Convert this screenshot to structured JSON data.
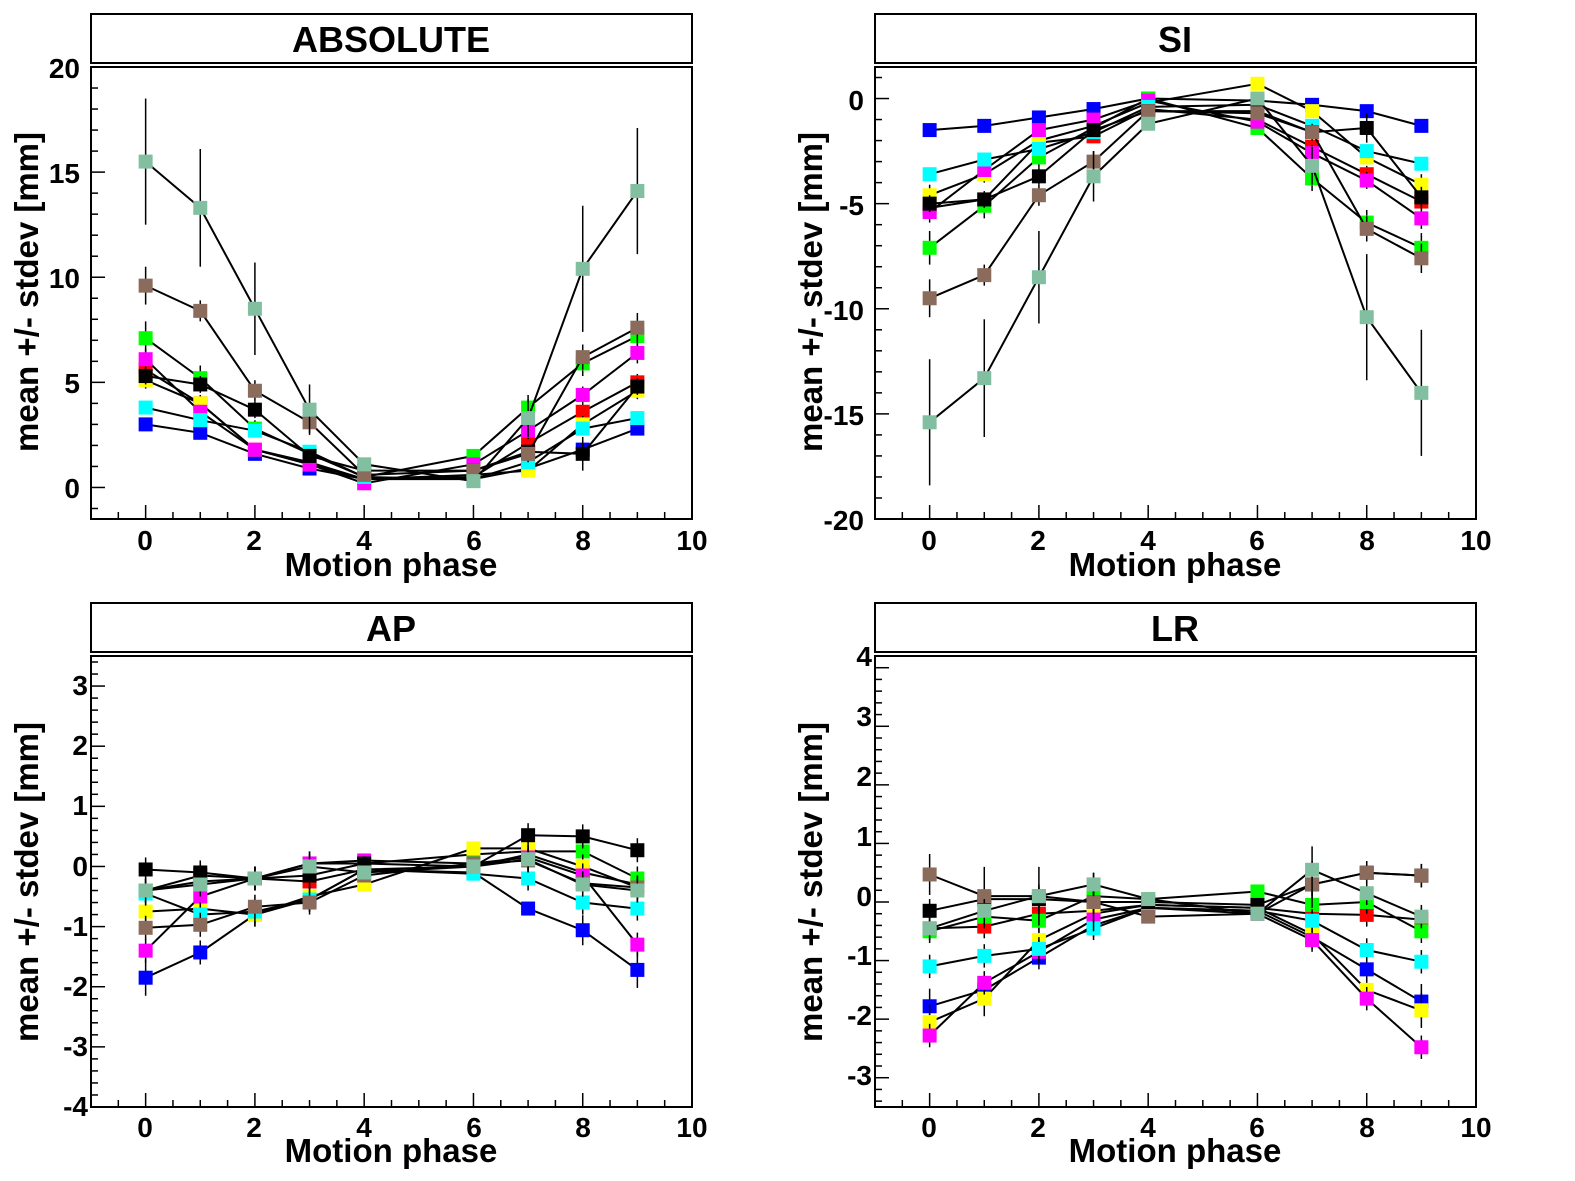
{
  "colors": {
    "blue": "#0000ff",
    "red": "#ff0000",
    "green": "#00ff00",
    "yellow": "#ffff00",
    "magenta": "#ff00ff",
    "cyan": "#00ffff",
    "black": "#000000",
    "brown": "#8b6b5b",
    "sage": "#82bfa0"
  },
  "chart_data": [
    {
      "type": "scatter",
      "title": "ABSOLUTE",
      "xlabel": "Motion phase",
      "ylabel": "mean +/- stdev [mm]",
      "xlim": [
        -1,
        10
      ],
      "ylim": [
        -1.5,
        20
      ],
      "xticks": [
        "0",
        "2",
        "4",
        "6",
        "8",
        "10"
      ],
      "yticks": [
        "0",
        "5",
        "10",
        "15",
        "20"
      ],
      "x": [
        0,
        1,
        2,
        3,
        4,
        6,
        7,
        8,
        9
      ],
      "series": [
        {
          "color": "blue",
          "values": [
            3.0,
            2.6,
            1.6,
            0.9,
            0.4,
            0.4,
            0.9,
            1.8,
            2.8
          ],
          "err": [
            0.3,
            0.3,
            0.3,
            0.2,
            0.2,
            0.2,
            0.2,
            0.4,
            0.3
          ]
        },
        {
          "color": "red",
          "values": [
            5.6,
            4.0,
            1.8,
            1.2,
            0.4,
            0.5,
            2.1,
            3.6,
            5.0
          ],
          "err": [
            0.4,
            0.4,
            0.3,
            0.2,
            0.2,
            0.2,
            0.4,
            0.4,
            0.4
          ]
        },
        {
          "color": "green",
          "values": [
            7.1,
            5.2,
            2.8,
            1.6,
            0.5,
            1.5,
            3.8,
            5.9,
            7.2
          ],
          "err": [
            0.8,
            0.6,
            0.4,
            0.3,
            0.2,
            0.2,
            0.6,
            0.6,
            0.5
          ]
        },
        {
          "color": "yellow",
          "values": [
            5.1,
            4.0,
            1.8,
            1.1,
            0.4,
            0.6,
            0.8,
            3.0,
            4.6
          ],
          "err": [
            0.4,
            0.3,
            0.3,
            0.2,
            0.2,
            0.2,
            0.2,
            0.4,
            0.4
          ]
        },
        {
          "color": "magenta",
          "values": [
            6.1,
            3.6,
            1.8,
            1.1,
            0.2,
            1.1,
            2.7,
            4.4,
            6.4
          ],
          "err": [
            0.5,
            0.3,
            0.3,
            0.2,
            0.2,
            0.2,
            0.4,
            0.4,
            0.5
          ]
        },
        {
          "color": "cyan",
          "values": [
            3.8,
            3.2,
            2.7,
            1.7,
            0.5,
            0.4,
            1.2,
            2.8,
            3.3
          ],
          "err": [
            0.3,
            0.3,
            0.3,
            0.3,
            0.2,
            0.2,
            0.3,
            0.3,
            0.3
          ]
        },
        {
          "color": "black",
          "values": [
            5.3,
            4.9,
            3.7,
            1.5,
            0.8,
            0.8,
            1.7,
            1.6,
            4.8
          ],
          "err": [
            0.4,
            0.4,
            0.4,
            0.3,
            0.2,
            0.2,
            0.3,
            0.8,
            0.4
          ]
        },
        {
          "color": "brown",
          "values": [
            9.6,
            8.4,
            4.6,
            3.1,
            0.6,
            0.8,
            1.6,
            6.2,
            7.6
          ],
          "err": [
            0.9,
            0.5,
            0.5,
            0.5,
            0.2,
            0.2,
            0.4,
            0.6,
            0.7
          ]
        },
        {
          "color": "sage",
          "values": [
            15.5,
            13.3,
            8.5,
            3.7,
            1.1,
            0.3,
            3.3,
            10.4,
            14.1
          ],
          "err": [
            3.0,
            2.8,
            2.2,
            1.2,
            0.3,
            0.2,
            0.9,
            3.0,
            3.0
          ]
        }
      ]
    },
    {
      "type": "scatter",
      "title": "SI",
      "xlabel": "Motion phase",
      "ylabel": "mean +/- stdev [mm]",
      "xlim": [
        -1,
        10
      ],
      "ylim": [
        -20,
        1.5
      ],
      "xticks": [
        "0",
        "2",
        "4",
        "6",
        "8",
        "10"
      ],
      "yticks": [
        "-20",
        "-15",
        "-10",
        "-5",
        "0"
      ],
      "x": [
        0,
        1,
        2,
        3,
        4,
        6,
        7,
        8,
        9
      ],
      "series": [
        {
          "color": "blue",
          "values": [
            -1.5,
            -1.3,
            -0.9,
            -0.5,
            0.0,
            -0.1,
            -0.3,
            -0.6,
            -1.3
          ],
          "err": [
            0.2,
            0.3,
            0.2,
            0.2,
            0.1,
            0.1,
            0.2,
            0.3,
            0.2
          ]
        },
        {
          "color": "red",
          "values": [
            -5.2,
            -4.8,
            -2.1,
            -1.8,
            -0.5,
            -1.0,
            -2.3,
            -3.6,
            -4.9
          ],
          "err": [
            0.4,
            0.3,
            0.3,
            0.3,
            0.2,
            0.2,
            0.3,
            0.4,
            0.4
          ]
        },
        {
          "color": "green",
          "values": [
            -7.1,
            -5.1,
            -2.8,
            -1.4,
            0.0,
            -1.4,
            -3.8,
            -5.9,
            -7.1
          ],
          "err": [
            0.8,
            0.6,
            0.5,
            0.3,
            0.2,
            0.2,
            0.6,
            0.6,
            0.7
          ]
        },
        {
          "color": "yellow",
          "values": [
            -4.6,
            -3.6,
            -2.0,
            -1.3,
            -0.2,
            0.7,
            -0.6,
            -2.8,
            -4.1
          ],
          "err": [
            0.5,
            0.4,
            0.3,
            0.3,
            0.2,
            0.2,
            0.3,
            0.3,
            0.5
          ]
        },
        {
          "color": "magenta",
          "values": [
            -5.4,
            -3.4,
            -1.5,
            -1.0,
            -0.1,
            -1.1,
            -2.6,
            -3.9,
            -5.7
          ],
          "err": [
            0.5,
            0.3,
            0.3,
            0.3,
            0.2,
            0.2,
            0.4,
            0.4,
            0.5
          ]
        },
        {
          "color": "cyan",
          "values": [
            -3.6,
            -2.9,
            -2.4,
            -1.6,
            -0.4,
            -0.3,
            -1.3,
            -2.5,
            -3.1
          ],
          "err": [
            0.3,
            0.3,
            0.3,
            0.3,
            0.2,
            0.2,
            0.3,
            0.3,
            0.3
          ]
        },
        {
          "color": "black",
          "values": [
            -5.0,
            -4.8,
            -3.7,
            -1.5,
            -0.6,
            -0.6,
            -1.6,
            -1.4,
            -4.7
          ],
          "err": [
            0.4,
            0.4,
            0.4,
            0.3,
            0.2,
            0.2,
            0.3,
            0.7,
            0.5
          ]
        },
        {
          "color": "brown",
          "values": [
            -9.5,
            -8.4,
            -4.6,
            -3.0,
            -0.6,
            -0.7,
            -1.6,
            -6.2,
            -7.6
          ],
          "err": [
            0.9,
            0.5,
            0.5,
            0.5,
            0.2,
            0.2,
            0.4,
            0.6,
            0.7
          ]
        },
        {
          "color": "sage",
          "values": [
            -15.4,
            -13.3,
            -8.5,
            -3.7,
            -1.2,
            0.0,
            -3.2,
            -10.4,
            -14.0
          ],
          "err": [
            3.0,
            2.8,
            2.2,
            1.2,
            0.3,
            0.2,
            0.9,
            3.0,
            3.0
          ]
        }
      ]
    },
    {
      "type": "scatter",
      "title": "AP",
      "xlabel": "Motion phase",
      "ylabel": "mean +/- stdev [mm]",
      "xlim": [
        -1,
        10
      ],
      "ylim": [
        -4,
        3.5
      ],
      "xticks": [
        "0",
        "2",
        "4",
        "6",
        "8",
        "10"
      ],
      "yticks": [
        "-4",
        "-3",
        "-2",
        "-1",
        "0",
        "1",
        "2",
        "3"
      ],
      "x": [
        0,
        1,
        2,
        3,
        4,
        6,
        7,
        8,
        9
      ],
      "series": [
        {
          "color": "blue",
          "values": [
            -1.85,
            -1.43,
            -0.8,
            -0.55,
            -0.05,
            -0.1,
            -0.7,
            -1.06,
            -1.72
          ],
          "err": [
            0.3,
            0.2,
            0.2,
            0.2,
            0.1,
            0.1,
            0.1,
            0.25,
            0.3
          ]
        },
        {
          "color": "red",
          "values": [
            -0.4,
            -0.15,
            -0.2,
            -0.25,
            -0.05,
            0.0,
            0.2,
            -0.1,
            -0.3
          ],
          "err": [
            0.2,
            0.2,
            0.2,
            0.2,
            0.1,
            0.1,
            0.2,
            0.2,
            0.2
          ]
        },
        {
          "color": "green",
          "values": [
            -0.4,
            -0.25,
            -0.2,
            0.05,
            0.05,
            0.2,
            0.25,
            0.25,
            -0.2
          ],
          "err": [
            0.2,
            0.2,
            0.2,
            0.2,
            0.1,
            0.1,
            0.2,
            0.2,
            0.2
          ]
        },
        {
          "color": "yellow",
          "values": [
            -0.75,
            -0.7,
            -0.8,
            -0.5,
            -0.3,
            0.3,
            0.3,
            0.0,
            -0.35
          ],
          "err": [
            0.2,
            0.2,
            0.2,
            0.2,
            0.1,
            0.1,
            0.2,
            0.2,
            0.2
          ]
        },
        {
          "color": "magenta",
          "values": [
            -1.4,
            -0.5,
            -0.2,
            0.05,
            0.1,
            0.05,
            0.15,
            -0.15,
            -1.3
          ],
          "err": [
            0.2,
            0.2,
            0.2,
            0.2,
            0.1,
            0.1,
            0.2,
            0.2,
            0.2
          ]
        },
        {
          "color": "cyan",
          "values": [
            -0.45,
            -0.8,
            -0.75,
            -0.55,
            -0.05,
            -0.12,
            -0.2,
            -0.6,
            -0.7
          ],
          "err": [
            0.2,
            0.2,
            0.2,
            0.2,
            0.1,
            0.1,
            0.2,
            0.2,
            0.2
          ]
        },
        {
          "color": "black",
          "values": [
            -0.05,
            -0.1,
            -0.2,
            -0.15,
            0.05,
            0.0,
            0.52,
            0.5,
            0.27
          ],
          "err": [
            0.2,
            0.2,
            0.2,
            0.2,
            0.1,
            0.1,
            0.2,
            0.2,
            0.2
          ]
        },
        {
          "color": "brown",
          "values": [
            -1.02,
            -0.97,
            -0.67,
            -0.6,
            -0.15,
            0.05,
            0.1,
            -0.28,
            -0.35
          ],
          "err": [
            0.2,
            0.2,
            0.2,
            0.2,
            0.1,
            0.1,
            0.2,
            0.2,
            0.2
          ]
        },
        {
          "color": "sage",
          "values": [
            -0.4,
            -0.3,
            -0.2,
            0.0,
            -0.1,
            0.0,
            0.12,
            -0.3,
            -0.4
          ],
          "err": [
            0.2,
            0.2,
            0.2,
            0.2,
            0.1,
            0.1,
            0.2,
            0.2,
            0.2
          ]
        }
      ]
    },
    {
      "type": "scatter",
      "title": "LR",
      "xlabel": "Motion phase",
      "ylabel": "mean +/- stdev [mm]",
      "xlim": [
        -1,
        10
      ],
      "ylim": [
        -3.5,
        4.2
      ],
      "xticks": [
        "0",
        "2",
        "4",
        "6",
        "8",
        "10"
      ],
      "yticks": [
        "-3",
        "-2",
        "-1",
        "0",
        "1",
        "2",
        "3",
        "4"
      ],
      "x": [
        0,
        1,
        2,
        3,
        4,
        6,
        7,
        8,
        9
      ],
      "series": [
        {
          "color": "blue",
          "values": [
            -1.78,
            -1.5,
            -0.95,
            -0.4,
            -0.1,
            -0.15,
            -0.6,
            -1.15,
            -1.7
          ],
          "err": [
            0.3,
            0.3,
            0.2,
            0.2,
            0.1,
            0.1,
            0.2,
            0.2,
            0.3
          ]
        },
        {
          "color": "red",
          "values": [
            -0.45,
            -0.42,
            -0.2,
            -0.15,
            -0.05,
            -0.1,
            -0.2,
            -0.22,
            -0.3
          ],
          "err": [
            0.2,
            0.2,
            0.2,
            0.2,
            0.1,
            0.1,
            0.2,
            0.2,
            0.2
          ]
        },
        {
          "color": "green",
          "values": [
            -0.5,
            -0.25,
            -0.32,
            0.1,
            0.05,
            0.18,
            -0.05,
            0.0,
            -0.5
          ],
          "err": [
            0.2,
            0.2,
            0.2,
            0.2,
            0.1,
            0.1,
            0.2,
            0.2,
            0.2
          ]
        },
        {
          "color": "yellow",
          "values": [
            -2.05,
            -1.65,
            -0.65,
            -0.2,
            -0.05,
            -0.1,
            -0.55,
            -1.5,
            -1.85
          ],
          "err": [
            0.3,
            0.3,
            0.2,
            0.2,
            0.1,
            0.1,
            0.2,
            0.2,
            0.3
          ]
        },
        {
          "color": "magenta",
          "values": [
            -2.28,
            -1.38,
            -0.85,
            -0.3,
            -0.1,
            -0.2,
            -0.65,
            -1.65,
            -2.48
          ],
          "err": [
            0.2,
            0.2,
            0.2,
            0.2,
            0.1,
            0.1,
            0.2,
            0.2,
            0.2
          ]
        },
        {
          "color": "cyan",
          "values": [
            -1.1,
            -0.92,
            -0.8,
            -0.45,
            -0.1,
            -0.15,
            -0.32,
            -0.82,
            -1.02
          ],
          "err": [
            0.2,
            0.2,
            0.2,
            0.2,
            0.1,
            0.1,
            0.2,
            0.2,
            0.2
          ]
        },
        {
          "color": "black",
          "values": [
            -0.15,
            0.05,
            0.05,
            0.0,
            0.0,
            -0.05,
            0.3,
            0.5,
            0.45
          ],
          "err": [
            0.2,
            0.2,
            0.2,
            0.2,
            0.1,
            0.1,
            0.2,
            0.2,
            0.2
          ]
        },
        {
          "color": "brown",
          "values": [
            0.47,
            0.1,
            0.1,
            0.0,
            -0.25,
            -0.2,
            0.3,
            0.5,
            0.45
          ],
          "err": [
            0.35,
            0.5,
            0.5,
            0.5,
            0.1,
            0.1,
            0.4,
            0.2,
            0.2
          ]
        },
        {
          "color": "sage",
          "values": [
            -0.45,
            -0.15,
            0.1,
            0.3,
            0.05,
            -0.2,
            0.55,
            0.15,
            -0.25
          ],
          "err": [
            0.2,
            0.2,
            0.2,
            0.2,
            0.1,
            0.1,
            0.4,
            0.2,
            0.2
          ]
        }
      ]
    }
  ]
}
